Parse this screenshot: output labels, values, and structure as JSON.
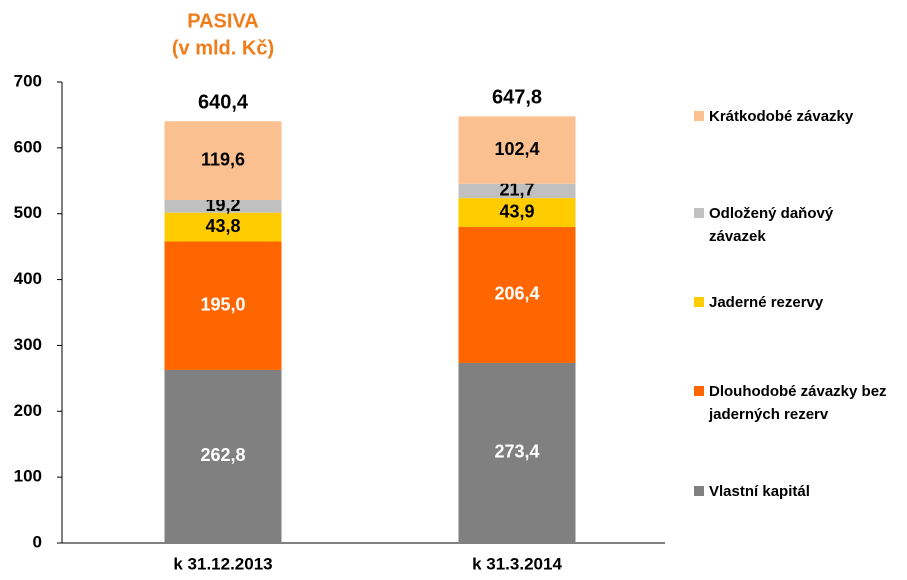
{
  "chart_data": {
    "type": "stacked_bar",
    "title": "PASIVA",
    "subtitle": "(v mld. Kč)",
    "title_color": "#f07d1a",
    "categories": [
      "k 31.12.2013",
      "k 31.3.2014"
    ],
    "series": [
      {
        "name": "Vlastní kapitál",
        "color": "#808080",
        "label_color": "#ffffff",
        "values": [
          262.8,
          273.4
        ],
        "value_labels": [
          "262,8",
          "273,4"
        ]
      },
      {
        "name": "Dlouhodobé závazky bez jaderných rezerv",
        "color": "#ff6600",
        "label_color": "#ffffff",
        "values": [
          195.0,
          206.4
        ],
        "value_labels": [
          "195,0",
          "206,4"
        ]
      },
      {
        "name": "Jaderné rezervy",
        "color": "#ffcc00",
        "label_color": "#000000",
        "values": [
          43.8,
          43.9
        ],
        "value_labels": [
          "43,8",
          "43,9"
        ]
      },
      {
        "name": "Odložený daňový závazek",
        "color": "#c0c0c0",
        "label_color": "#000000",
        "values": [
          19.2,
          21.7
        ],
        "value_labels": [
          "19,2",
          "21,7"
        ]
      },
      {
        "name": "Krátkodobé závazky",
        "color": "#fac090",
        "label_color": "#000000",
        "values": [
          119.6,
          102.4
        ],
        "value_labels": [
          "119,6",
          "102,4"
        ]
      }
    ],
    "totals": [
      640.4,
      647.8
    ],
    "total_labels": [
      "640,4",
      "647,8"
    ],
    "ylim": [
      0,
      700
    ],
    "yticks": [
      0,
      100,
      200,
      300,
      400,
      500,
      600,
      700
    ],
    "grid": false,
    "legend": "right"
  }
}
